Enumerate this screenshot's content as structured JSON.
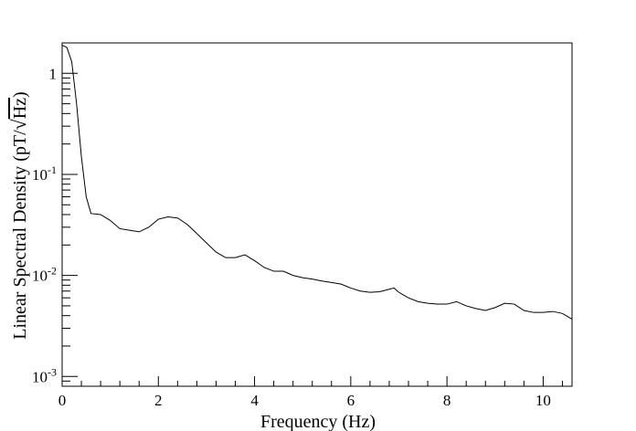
{
  "chart_data": {
    "type": "line",
    "xlabel": "Frequency (Hz)",
    "ylabel_prefix": "Linear Spectral Density (pT/",
    "ylabel_radical": "Hz",
    "ylabel_suffix": ")",
    "x_range": [
      0,
      10.6
    ],
    "y_range": [
      0.0008,
      2
    ],
    "y_scale": "log",
    "grid": false,
    "x_ticks": [
      0,
      2,
      4,
      6,
      8,
      10
    ],
    "x_tick_labels": [
      "0",
      "2",
      "4",
      "6",
      "8",
      "10"
    ],
    "y_ticks": [
      {
        "value": 1,
        "base": "1",
        "exp": ""
      },
      {
        "value": 0.1,
        "base": "10",
        "exp": "-1"
      },
      {
        "value": 0.01,
        "base": "10",
        "exp": "-2"
      },
      {
        "value": 0.001,
        "base": "10",
        "exp": "-3"
      }
    ],
    "series": [
      {
        "color": "#000000",
        "x": [
          0,
          0.1,
          0.2,
          0.3,
          0.4,
          0.5,
          0.6,
          0.8,
          1.0,
          1.2,
          1.4,
          1.6,
          1.8,
          2.0,
          2.2,
          2.4,
          2.6,
          2.8,
          3.0,
          3.2,
          3.4,
          3.6,
          3.8,
          4.0,
          4.2,
          4.4,
          4.6,
          4.8,
          5.0,
          5.2,
          5.4,
          5.6,
          5.8,
          6.0,
          6.2,
          6.4,
          6.6,
          6.8,
          6.9,
          7.0,
          7.2,
          7.4,
          7.6,
          7.8,
          8.0,
          8.2,
          8.4,
          8.6,
          8.8,
          9.0,
          9.2,
          9.4,
          9.6,
          9.8,
          10.0,
          10.2,
          10.4,
          10.6
        ],
        "y": [
          1.9,
          1.8,
          1.3,
          0.5,
          0.15,
          0.06,
          0.041,
          0.04,
          0.035,
          0.029,
          0.028,
          0.027,
          0.03,
          0.036,
          0.038,
          0.037,
          0.032,
          0.026,
          0.021,
          0.017,
          0.015,
          0.015,
          0.016,
          0.014,
          0.012,
          0.011,
          0.011,
          0.01,
          0.0095,
          0.0092,
          0.0088,
          0.0085,
          0.0082,
          0.0075,
          0.007,
          0.0068,
          0.0069,
          0.0073,
          0.0075,
          0.0068,
          0.006,
          0.0055,
          0.0053,
          0.0052,
          0.0052,
          0.0055,
          0.005,
          0.0047,
          0.0045,
          0.0048,
          0.0053,
          0.0052,
          0.0045,
          0.0043,
          0.0043,
          0.0044,
          0.0042,
          0.0037
        ]
      }
    ]
  }
}
